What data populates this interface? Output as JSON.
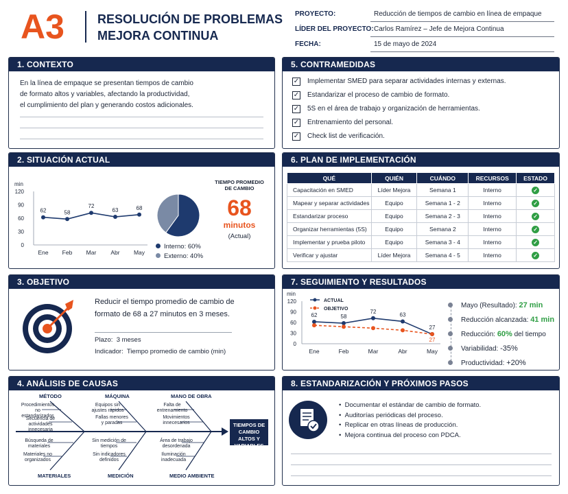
{
  "header": {
    "logo": "A3",
    "title_line1": "RESOLUCIÓN DE PROBLEMAS",
    "title_line2": "MEJORA CONTINUA",
    "fields": [
      {
        "label": "PROYECTO:",
        "value": "Reducción de tiempos de cambio en línea de empaque"
      },
      {
        "label": "LÍDER DEL PROYECTO:",
        "value": "Carlos Ramírez – Jefe de Mejora Continua"
      },
      {
        "label": "FECHA:",
        "value": "15 de mayo de 2024"
      }
    ]
  },
  "s1": {
    "title": "1.  CONTEXTO",
    "lines": [
      "En la línea de empaque se presentan tiempos de cambio",
      "de formato altos y variables, afectando la productividad,",
      "el cumplimiento del plan y generando costos adicionales."
    ]
  },
  "s2": {
    "title": "2.  SITUACIÓN ACTUAL",
    "kpi_label1": "TIEMPO PROMEDIO",
    "kpi_label2": "DE CAMBIO",
    "kpi_value": "68",
    "kpi_unit": "minutos",
    "kpi_note": "(Actual)",
    "pie_legend": [
      {
        "label": "Interno:",
        "value": "60%",
        "color": "#1e3a6e"
      },
      {
        "label": "Externo:",
        "value": "40%",
        "color": "#7a8aa5"
      }
    ]
  },
  "s3": {
    "title": "3.  OBJETIVO",
    "line1": "Reducir el tiempo promedio de cambio de",
    "line2": "formato de 68 a 27 minutos en 3 meses.",
    "plazo_label": "Plazo:",
    "plazo": "3 meses",
    "ind_label": "Indicador:",
    "indicador": "Tiempo promedio de cambio (min)"
  },
  "s4": {
    "title": "4.  ANÁLISIS DE CAUSAS",
    "heads_top": [
      "MÉTODO",
      "MÁQUINA",
      "MANO DE OBRA"
    ],
    "heads_bottom": [
      "MATERIALES",
      "MEDICIÓN",
      "MEDIO AMBIENTE"
    ],
    "metodo": [
      "Procedimientos no estandarizados",
      "Secuencia de actividades innecesaria"
    ],
    "maquina": [
      "Equipos sin ajustes rápidos",
      "Fallas menores y paradas"
    ],
    "mano": [
      "Falta de entrenamiento",
      "Movimientos innecesarios"
    ],
    "materiales": [
      "Búsqueda de materiales",
      "Materiales no organizados"
    ],
    "medicion": [
      "Sin medición de tiempos",
      "Sin indicadores definidos"
    ],
    "ambiente": [
      "Área de trabajo desordenada",
      "Iluminación inadecuada"
    ],
    "effect": "TIEMPOS DE CAMBIO ALTOS Y VARIABLES"
  },
  "s5": {
    "title": "5.  CONTRAMEDIDAS",
    "items": [
      "Implementar SMED para separar actividades internas y externas.",
      "Estandarizar el proceso de cambio de formato.",
      "5S en el área de trabajo y organización de herramientas.",
      "Entrenamiento del personal.",
      "Check list de verificación."
    ]
  },
  "s6": {
    "title": "6.  PLAN DE IMPLEMENTACIÓN",
    "headers": [
      "QUÉ",
      "QUIÉN",
      "CUÁNDO",
      "RECURSOS",
      "ESTADO"
    ],
    "rows": [
      [
        "Capacitación en SMED",
        "Líder Mejora",
        "Semana 1",
        "Interno"
      ],
      [
        "Mapear y separar actividades",
        "Equipo",
        "Semana 1 - 2",
        "Interno"
      ],
      [
        "Estandarizar proceso",
        "Equipo",
        "Semana 2 - 3",
        "Interno"
      ],
      [
        "Organizar herramientas (5S)",
        "Equipo",
        "Semana 2",
        "Interno"
      ],
      [
        "Implementar y prueba piloto",
        "Equipo",
        "Semana 3 - 4",
        "Interno"
      ],
      [
        "Verificar y ajustar",
        "Líder Mejora",
        "Semana 4 - 5",
        "Interno"
      ]
    ]
  },
  "s7": {
    "title": "7.  SEGUIMIENTO Y RESULTADOS",
    "results": [
      {
        "label": "Mayo (Resultado):",
        "value": "27 min",
        "green": true
      },
      {
        "label": "Reducción alcanzada:",
        "value": "41 min",
        "green": true
      },
      {
        "label": "Reducción:",
        "value": "60%",
        "suffix": "del tiempo",
        "green": true
      },
      {
        "label": "Variabilidad:",
        "value": "-35%",
        "green": false
      },
      {
        "label": "Productividad:",
        "value": "+20%",
        "green": false
      }
    ]
  },
  "s8": {
    "title": "8.  ESTANDARIZACIÓN Y PRÓXIMOS PASOS",
    "items": [
      "Documentar el estándar de cambio de formato.",
      "Auditorías periódicas del proceso.",
      "Replicar en otras líneas de producción.",
      "Mejora continua del proceso con PDCA."
    ]
  },
  "chart_data": [
    {
      "type": "line",
      "ylabel": "min",
      "categories": [
        "Ene",
        "Feb",
        "Mar",
        "Abr",
        "May"
      ],
      "values": [
        62,
        58,
        72,
        63,
        68
      ],
      "ylim": [
        0,
        120
      ],
      "yticks": [
        0,
        30,
        60,
        90,
        120
      ],
      "color": "#1e3a6e"
    },
    {
      "type": "pie",
      "categories": [
        "Interno",
        "Externo"
      ],
      "values": [
        60,
        40
      ],
      "colors": [
        "#1e3a6e",
        "#7a8aa5"
      ]
    },
    {
      "type": "line",
      "ylabel": "min",
      "categories": [
        "Ene",
        "Feb",
        "Mar",
        "Abr",
        "May"
      ],
      "series": [
        {
          "name": "ACTUAL",
          "values": [
            62,
            58,
            72,
            63,
            27
          ],
          "color": "#1e3a6e"
        },
        {
          "name": "OBJETIVO",
          "values": [
            52,
            48,
            44,
            38,
            27
          ],
          "color": "#e8541e"
        }
      ],
      "ylim": [
        0,
        120
      ],
      "yticks": [
        0,
        30,
        60,
        90,
        120
      ]
    }
  ]
}
